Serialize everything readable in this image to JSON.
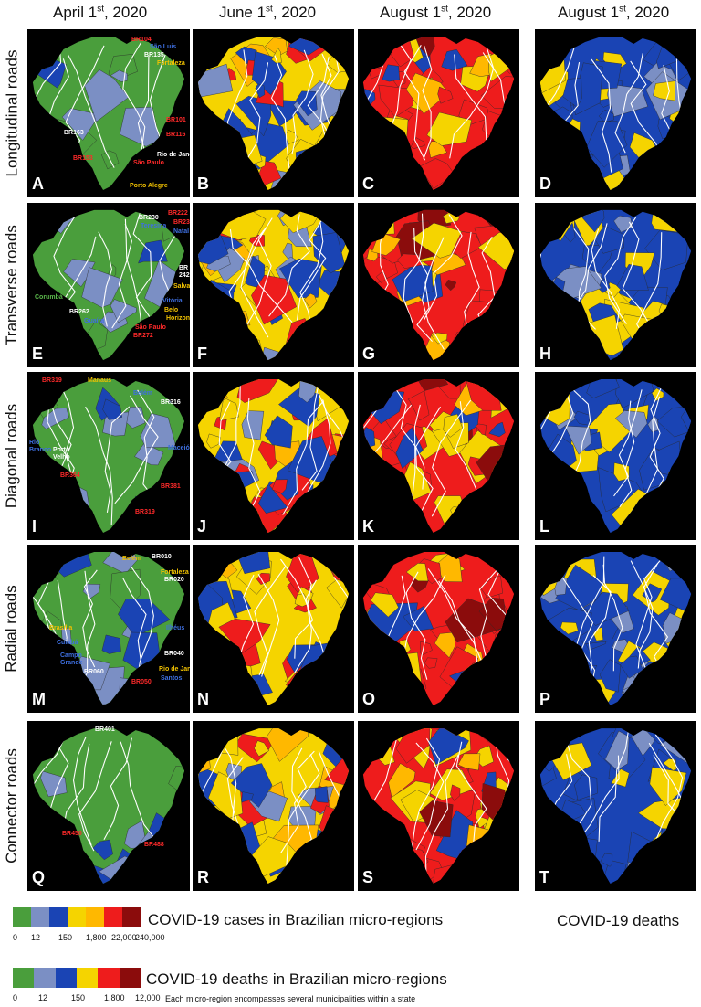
{
  "column_headers": [
    {
      "month": "April 1",
      "sup": "st",
      "year": ", 2020"
    },
    {
      "month": "June 1",
      "sup": "st",
      "year": ", 2020"
    },
    {
      "month": "August 1",
      "sup": "st",
      "year": ", 2020"
    },
    {
      "month": "August 1",
      "sup": "st",
      "year": ", 2020"
    }
  ],
  "row_labels": [
    "Longitudinal roads",
    "Transverse roads",
    "Diagonal roads",
    "Radial roads",
    "Connector roads"
  ],
  "panel_letters": [
    "A",
    "B",
    "C",
    "D",
    "E",
    "F",
    "G",
    "H",
    "I",
    "J",
    "K",
    "L",
    "M",
    "N",
    "O",
    "P",
    "Q",
    "R",
    "S",
    "T"
  ],
  "annotations": {
    "A": [
      {
        "text": "BR104",
        "color": "r"
      },
      {
        "text": "São Luis",
        "color": "b"
      },
      {
        "text": "BR135",
        "color": "w"
      },
      {
        "text": "Fortaleza",
        "color": "y"
      },
      {
        "text": "BR101",
        "color": "r"
      },
      {
        "text": "BR163",
        "color": "w"
      },
      {
        "text": "BR116",
        "color": "r"
      },
      {
        "text": "BR153",
        "color": "r"
      },
      {
        "text": "Rio de Janeiro",
        "color": "w"
      },
      {
        "text": "São Paulo",
        "color": "r"
      },
      {
        "text": "Porto Alegre",
        "color": "y"
      }
    ],
    "E": [
      {
        "text": "BR230",
        "color": "w"
      },
      {
        "text": "BR222",
        "color": "r"
      },
      {
        "text": "Teresina",
        "color": "b"
      },
      {
        "text": "BR232",
        "color": "r"
      },
      {
        "text": "Natal",
        "color": "b"
      },
      {
        "text": "BR",
        "color": "w"
      },
      {
        "text": "242",
        "color": "w"
      },
      {
        "text": "Salvador",
        "color": "y"
      },
      {
        "text": "Corumbá",
        "color": "g"
      },
      {
        "text": "Vitória",
        "color": "b"
      },
      {
        "text": "BR262",
        "color": "w"
      },
      {
        "text": "Belo",
        "color": "y"
      },
      {
        "text": "Guaíra",
        "color": "b"
      },
      {
        "text": "Horizonte",
        "color": "y"
      },
      {
        "text": "São Paulo",
        "color": "r"
      },
      {
        "text": "BR272",
        "color": "r"
      }
    ],
    "I": [
      {
        "text": "BR319",
        "color": "r"
      },
      {
        "text": "Manaus",
        "color": "y"
      },
      {
        "text": "Belém",
        "color": "b"
      },
      {
        "text": "BR316",
        "color": "w"
      },
      {
        "text": "Rio",
        "color": "b"
      },
      {
        "text": "Branco",
        "color": "b"
      },
      {
        "text": "Porto",
        "color": "w"
      },
      {
        "text": "Velho",
        "color": "w"
      },
      {
        "text": "Maceió",
        "color": "b"
      },
      {
        "text": "BR364",
        "color": "r"
      },
      {
        "text": "BR381",
        "color": "r"
      },
      {
        "text": "BR319",
        "color": "r"
      }
    ],
    "M": [
      {
        "text": "Belém",
        "color": "y"
      },
      {
        "text": "BR010",
        "color": "w"
      },
      {
        "text": "Fortaleza",
        "color": "y"
      },
      {
        "text": "BR020",
        "color": "w"
      },
      {
        "text": "Brasília",
        "color": "y"
      },
      {
        "text": "Ilhéus",
        "color": "b"
      },
      {
        "text": "Cuiabá",
        "color": "b"
      },
      {
        "text": "Campo",
        "color": "b"
      },
      {
        "text": "Grande",
        "color": "b"
      },
      {
        "text": "BR040",
        "color": "w"
      },
      {
        "text": "BR060",
        "color": "w"
      },
      {
        "text": "Rio de Janeiro",
        "color": "y"
      },
      {
        "text": "BR050",
        "color": "r"
      },
      {
        "text": "Santos",
        "color": "b"
      }
    ],
    "Q": [
      {
        "text": "BR401",
        "color": "w"
      },
      {
        "text": "BR450",
        "color": "r"
      },
      {
        "text": "BR488",
        "color": "r"
      }
    ]
  },
  "legend_colors": {
    "cases": [
      "#4a9e3c",
      "#7b8fc4",
      "#1a44b4",
      "#f5d400",
      "#ffb800",
      "#ee1c1c",
      "#8b0c0c"
    ],
    "deaths": [
      "#4a9e3c",
      "#7b8fc4",
      "#1a44b4",
      "#f5d400",
      "#ee1c1c",
      "#8b0c0c"
    ]
  },
  "legend": {
    "cases_title": "COVID-19 cases in Brazilian micro-regions",
    "cases_ticks": [
      "0",
      "12",
      "150",
      "1,800",
      "22,000",
      "240,000"
    ],
    "deaths_title": "COVID-19 deaths in Brazilian micro-regions",
    "deaths_ticks": [
      "0",
      "12",
      "150",
      "1,800",
      "12,000"
    ],
    "note": "Each micro-region encompasses several municipalities within a state",
    "column4_label": "COVID-19 deaths"
  }
}
